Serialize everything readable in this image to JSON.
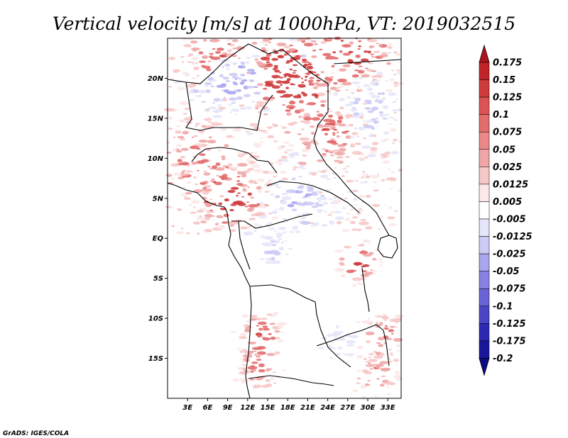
{
  "title": "Vertical velocity [m/s] at 1000hPa, VT: 2019032515",
  "credit": "GrADS: IGES/COLA",
  "map": {
    "lon_range": [
      0,
      35
    ],
    "lat_range": [
      -20,
      25
    ],
    "lat_ticks": [
      {
        "value": 20,
        "label": "20N"
      },
      {
        "value": 15,
        "label": "15N"
      },
      {
        "value": 10,
        "label": "10N"
      },
      {
        "value": 5,
        "label": "5N"
      },
      {
        "value": 0,
        "label": "EQ"
      },
      {
        "value": -5,
        "label": "5S"
      },
      {
        "value": -10,
        "label": "10S"
      },
      {
        "value": -15,
        "label": "15S"
      }
    ],
    "lon_ticks": [
      {
        "value": 3,
        "label": "3E"
      },
      {
        "value": 6,
        "label": "6E"
      },
      {
        "value": 9,
        "label": "9E"
      },
      {
        "value": 12,
        "label": "12E"
      },
      {
        "value": 15,
        "label": "15E"
      },
      {
        "value": 18,
        "label": "18E"
      },
      {
        "value": 21,
        "label": "21E"
      },
      {
        "value": 24,
        "label": "24E"
      },
      {
        "value": 27,
        "label": "27E"
      },
      {
        "value": 30,
        "label": "30E"
      },
      {
        "value": 33,
        "label": "33E"
      }
    ]
  },
  "colorbar": {
    "levels": [
      "0.175",
      "0.15",
      "0.125",
      "0.1",
      "0.075",
      "0.05",
      "0.025",
      "0.0125",
      "0.005",
      "-0.005",
      "-0.0125",
      "-0.025",
      "-0.05",
      "-0.075",
      "-0.1",
      "-0.125",
      "-0.175",
      "-0.2"
    ],
    "colors": [
      "#b0151c",
      "#c02428",
      "#cf3a3a",
      "#dd5252",
      "#e36c6c",
      "#ea8888",
      "#f0a6a6",
      "#f7c8c8",
      "#fce8e8",
      "#ffffff",
      "#e6e6fa",
      "#cccbf5",
      "#a9a6ee",
      "#8781e3",
      "#6a63d6",
      "#4b45c6",
      "#2d28b4",
      "#1a169c",
      "#0d0a85"
    ]
  }
}
